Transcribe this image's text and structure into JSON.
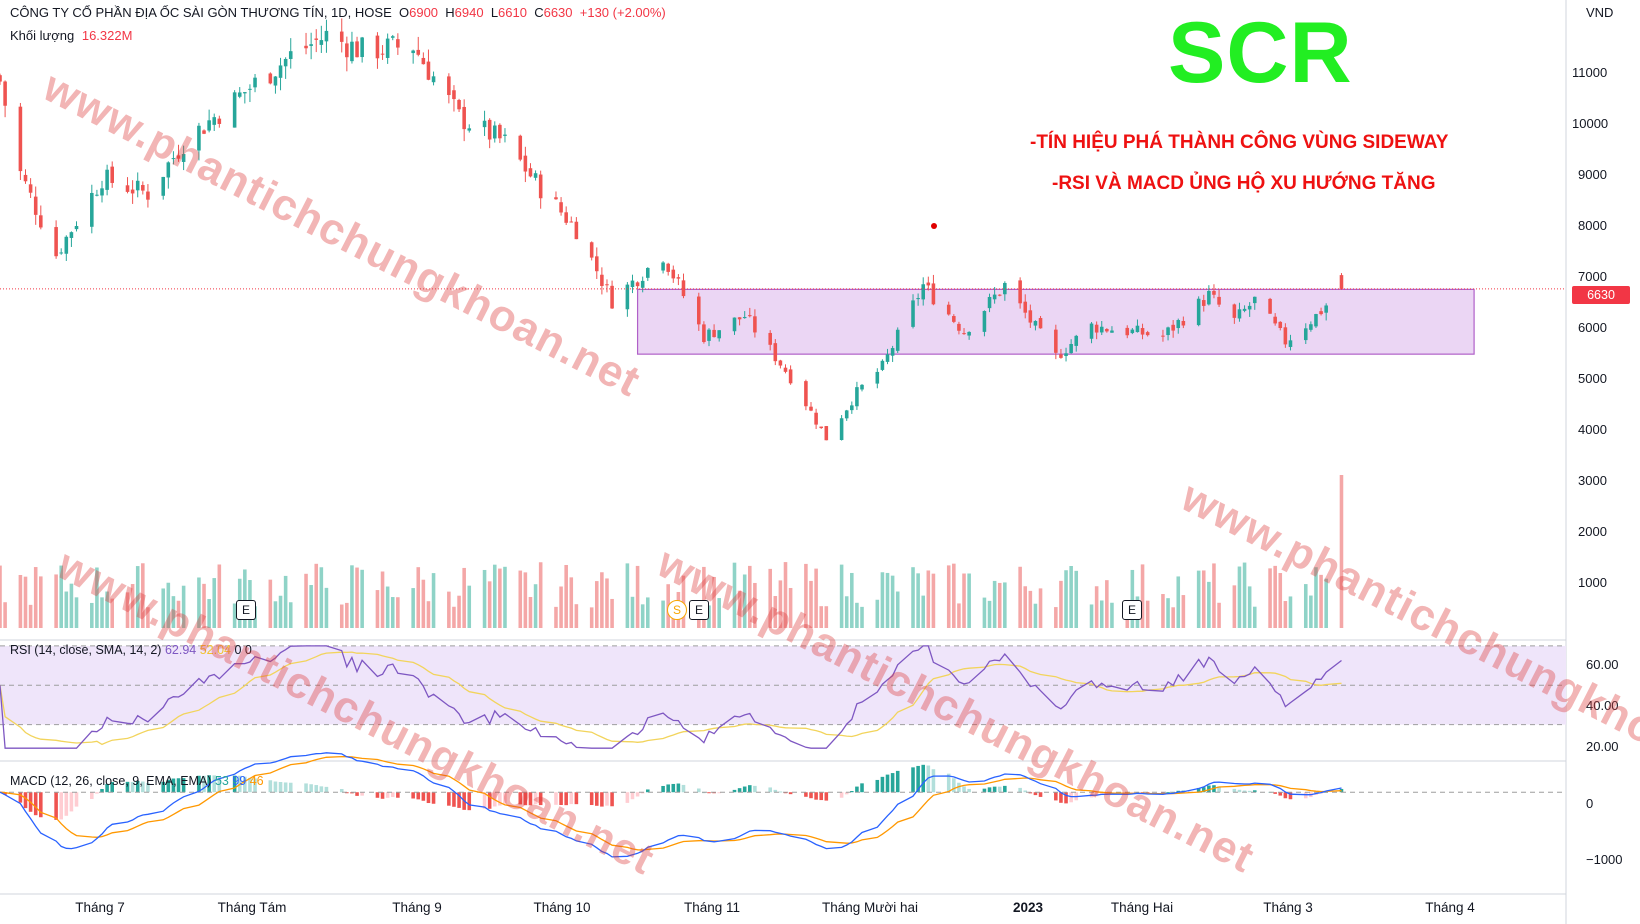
{
  "header": {
    "symbol_line": "CÔNG TY CỔ PHẦN ĐỊA ỐC SÀI GÒN THƯƠNG TÍN, 1D, HOSE",
    "open_label": "O",
    "open": "6900",
    "high_label": "H",
    "high": "6940",
    "low_label": "L",
    "low": "6610",
    "close_label": "C",
    "close": "6630",
    "change": "+130 (+2.00%)",
    "volume_label": "Khối lượng",
    "volume_value": "16.322M"
  },
  "annotation": {
    "ticker": "SCR",
    "note_1": "-TÍN HIỆU PHÁ THÀNH CÔNG VÙNG SIDEWAY",
    "note_2": "-RSI VÀ MACD ỦNG HỘ XU HƯỚNG TĂNG"
  },
  "watermark_text": "www.phantichchungkhoan.net",
  "price_axis": {
    "currency": "VND",
    "ticks": [
      "11000",
      "10000",
      "9000",
      "8000",
      "7000",
      "6000",
      "5000",
      "4000",
      "3000",
      "2000",
      "1000"
    ],
    "last_price_tag": "6630"
  },
  "rsi": {
    "label": "RSI (14, close, SMA, 14, 2)",
    "value": "62.94",
    "sma_value": "52.04",
    "extra_1": "0",
    "extra_2": "0",
    "ticks": [
      "60.00",
      "40.00",
      "20.00"
    ]
  },
  "macd": {
    "label": "MACD (12, 26, close, 9, EMA, EMA)",
    "hist": "53",
    "macd": "99",
    "signal": "46",
    "ticks": [
      "0",
      "−1000"
    ]
  },
  "time_axis": [
    "Tháng 7",
    "Tháng Tám",
    "Tháng 9",
    "Tháng 10",
    "Tháng 11",
    "Tháng Mười hai",
    "2023",
    "Tháng Hai",
    "Tháng 3",
    "Tháng 4"
  ],
  "events": {
    "earnings": "E",
    "dividend": "S"
  },
  "colors": {
    "up": "#26a69a",
    "down": "#ef5350",
    "vol_up": "#8fd3c7",
    "vol_down": "#f4a7a7",
    "sideway_box": "#e4c8f0",
    "sideway_border": "#b060c8",
    "rsi_line": "#7e57c2",
    "rsi_sma": "#f2d45c",
    "rsi_band": "#efe5fa",
    "macd_line": "#2962ff",
    "signal_line": "#ff9800"
  },
  "chart_data": {
    "type": "candlestick",
    "title": "CÔNG TY CỔ PHẦN ĐỊA ỐC SÀI GÒN THƯƠNG TÍN, 1D, HOSE",
    "x_range": [
      "2022-06-16",
      "2023-04-10"
    ],
    "y_range_price": [
      0,
      11600
    ],
    "price_waypoints": [
      {
        "date": "2022-06-16",
        "close": 10700
      },
      {
        "date": "2022-06-20",
        "close": 8900
      },
      {
        "date": "2022-06-27",
        "close": 7300
      },
      {
        "date": "2022-07-06",
        "close": 8800
      },
      {
        "date": "2022-07-15",
        "close": 8500
      },
      {
        "date": "2022-07-22",
        "close": 9500
      },
      {
        "date": "2022-08-03",
        "close": 10500
      },
      {
        "date": "2022-08-12",
        "close": 11200
      },
      {
        "date": "2022-08-19",
        "close": 11600
      },
      {
        "date": "2022-08-26",
        "close": 11300
      },
      {
        "date": "2022-09-05",
        "close": 11400
      },
      {
        "date": "2022-09-14",
        "close": 10000
      },
      {
        "date": "2022-09-23",
        "close": 9500
      },
      {
        "date": "2022-09-30",
        "close": 8600
      },
      {
        "date": "2022-10-07",
        "close": 7800
      },
      {
        "date": "2022-10-14",
        "close": 6400
      },
      {
        "date": "2022-10-24",
        "close": 7300
      },
      {
        "date": "2022-11-01",
        "close": 5700
      },
      {
        "date": "2022-11-09",
        "close": 6100
      },
      {
        "date": "2022-11-18",
        "close": 4900
      },
      {
        "date": "2022-11-25",
        "close": 3700
      },
      {
        "date": "2022-12-01",
        "close": 4600
      },
      {
        "date": "2022-12-06",
        "close": 5100
      },
      {
        "date": "2022-12-14",
        "close": 6700
      },
      {
        "date": "2022-12-22",
        "close": 5800
      },
      {
        "date": "2022-12-30",
        "close": 6700
      },
      {
        "date": "2023-01-09",
        "close": 5300
      },
      {
        "date": "2023-01-16",
        "close": 5900
      },
      {
        "date": "2023-01-30",
        "close": 5700
      },
      {
        "date": "2023-02-08",
        "close": 6500
      },
      {
        "date": "2023-02-13",
        "close": 6000
      },
      {
        "date": "2023-02-17",
        "close": 6400
      },
      {
        "date": "2023-02-23",
        "close": 5600
      },
      {
        "date": "2023-03-01",
        "close": 6100
      },
      {
        "date": "2023-03-06",
        "close": 6630
      }
    ],
    "last_candle": {
      "date": "2023-03-06",
      "open": 6900,
      "high": 6940,
      "low": 6610,
      "close": 6630
    },
    "sideway_zone": {
      "from": "2022-10-19",
      "to": "2023-04-01",
      "low": 5350,
      "high": 6620
    },
    "volume_ticks": [
      1000,
      2000,
      3000
    ],
    "rsi_levels": [
      30,
      50,
      70
    ],
    "rsi_range": [
      12,
      72
    ],
    "macd_range": [
      -1500,
      450
    ],
    "earnings_dates": [
      "2022-07-29",
      "2022-10-28",
      "2023-02-06"
    ],
    "dividend_dates": [
      "2022-10-26"
    ]
  }
}
